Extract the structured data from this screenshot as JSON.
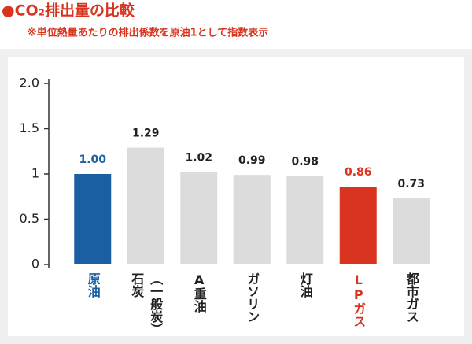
{
  "chart_data": {
    "type": "bar",
    "title": "●CO₂排出量の比較",
    "subtitle": "※単位熱量あたりの排出係数を原油1として指数表示",
    "categories": [
      "原油",
      "石炭\n（一般炭）",
      "A重油",
      "ガソリン",
      "灯油",
      "LPガス",
      "都市ガス"
    ],
    "values": [
      1.0,
      1.29,
      1.02,
      0.99,
      0.98,
      0.86,
      0.73
    ],
    "value_labels": [
      "1.00",
      "1.29",
      "1.02",
      "0.99",
      "0.98",
      "0.86",
      "0.73"
    ],
    "colors": [
      "#1b5fa3",
      "#dcdcdc",
      "#dcdcdc",
      "#dcdcdc",
      "#dcdcdc",
      "#d9341f",
      "#dcdcdc"
    ],
    "label_colors": [
      "#1b5fa3",
      "#222222",
      "#222222",
      "#222222",
      "#222222",
      "#d9341f",
      "#222222"
    ],
    "ylim": [
      0,
      2
    ],
    "yticks": [
      0,
      0.5,
      1,
      1.5,
      {
        "value": 2,
        "label": "2.0"
      }
    ]
  }
}
